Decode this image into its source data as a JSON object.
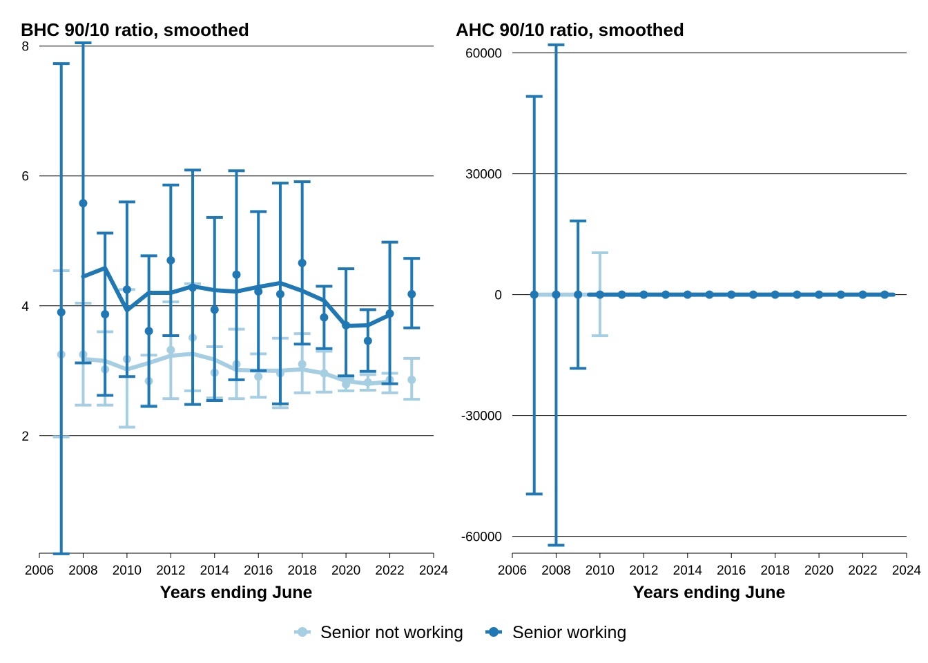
{
  "legend": {
    "items": [
      {
        "label": "Senior not working",
        "color": "#a6cee3"
      },
      {
        "label": "Senior working",
        "color": "#1f78b4"
      }
    ]
  },
  "chart_data": [
    {
      "type": "line",
      "title": "BHC 90/10 ratio, smoothed",
      "xlabel": "Years ending June",
      "ylabel": "",
      "xlim": [
        2006,
        2024
      ],
      "ylim": [
        0.2,
        8.05
      ],
      "x_ticks": [
        2006,
        2008,
        2010,
        2012,
        2014,
        2016,
        2018,
        2020,
        2022,
        2024
      ],
      "y_ticks": [
        2,
        4,
        6,
        8
      ],
      "grid": "horizontal",
      "series": [
        {
          "name": "Senior not working",
          "color": "#a6cee3",
          "x": [
            2007,
            2008,
            2009,
            2010,
            2011,
            2012,
            2013,
            2014,
            2015,
            2016,
            2017,
            2018,
            2019,
            2020,
            2021,
            2022,
            2023
          ],
          "points": [
            3.25,
            3.25,
            3.02,
            3.18,
            2.84,
            3.32,
            3.51,
            2.97,
            3.1,
            2.91,
            2.96,
            3.1,
            2.96,
            2.79,
            2.82,
            2.86,
            2.86
          ],
          "lower": [
            1.98,
            2.47,
            2.47,
            2.13,
            2.46,
            2.57,
            2.69,
            2.58,
            2.57,
            2.59,
            2.43,
            2.66,
            2.67,
            2.69,
            2.7,
            2.66,
            2.56
          ],
          "upper": [
            4.54,
            4.04,
            3.6,
            4.25,
            3.24,
            4.06,
            4.34,
            3.37,
            3.64,
            3.26,
            3.5,
            3.57,
            3.3,
            2.88,
            2.94,
            2.96,
            3.19
          ],
          "smooth_x": [
            2008,
            2009,
            2010,
            2011,
            2012,
            2013,
            2014,
            2015,
            2016,
            2017,
            2018,
            2019,
            2020,
            2021,
            2022
          ],
          "smooth": [
            3.18,
            3.15,
            3.02,
            3.12,
            3.23,
            3.26,
            3.17,
            3.01,
            3.0,
            3.0,
            3.02,
            2.96,
            2.84,
            2.8,
            2.83
          ]
        },
        {
          "name": "Senior working",
          "color": "#1f78b4",
          "x": [
            2007,
            2008,
            2009,
            2010,
            2011,
            2012,
            2013,
            2014,
            2015,
            2016,
            2017,
            2018,
            2019,
            2020,
            2021,
            2022,
            2023
          ],
          "points": [
            3.9,
            5.58,
            3.87,
            4.25,
            3.61,
            4.7,
            4.28,
            3.94,
            4.48,
            4.22,
            4.18,
            4.66,
            3.82,
            3.7,
            3.46,
            3.88,
            4.18
          ],
          "lower": [
            0.18,
            3.12,
            2.62,
            2.91,
            2.45,
            3.54,
            2.48,
            2.54,
            2.86,
            3.0,
            2.49,
            3.41,
            3.34,
            2.92,
            2.99,
            2.8,
            3.66
          ],
          "upper": [
            7.73,
            8.05,
            5.12,
            5.6,
            4.77,
            5.86,
            6.09,
            5.36,
            6.08,
            5.45,
            5.89,
            5.91,
            4.3,
            4.57,
            3.94,
            4.98,
            4.73
          ],
          "smooth_x": [
            2008,
            2009,
            2010,
            2011,
            2012,
            2013,
            2014,
            2015,
            2016,
            2017,
            2018,
            2019,
            2020,
            2021,
            2022
          ],
          "smooth": [
            4.45,
            4.58,
            3.93,
            4.2,
            4.2,
            4.3,
            4.24,
            4.22,
            4.29,
            4.35,
            4.23,
            4.08,
            3.69,
            3.7,
            3.86
          ]
        }
      ]
    },
    {
      "type": "line",
      "title": "AHC 90/10 ratio, smoothed",
      "xlabel": "Years ending June",
      "ylabel": "",
      "xlim": [
        2006,
        2024
      ],
      "ylim": [
        -64000,
        62500
      ],
      "x_ticks": [
        2006,
        2008,
        2010,
        2012,
        2014,
        2016,
        2018,
        2020,
        2022,
        2024
      ],
      "y_ticks": [
        -60000,
        -30000,
        0,
        30000,
        60000
      ],
      "grid": "horizontal",
      "series": [
        {
          "name": "Senior not working",
          "color": "#a6cee3",
          "x": [
            2007,
            2008,
            2009,
            2010,
            2011,
            2012,
            2013,
            2014,
            2015,
            2016,
            2017,
            2018,
            2019,
            2020,
            2021,
            2022,
            2023
          ],
          "points": [
            5,
            4,
            4,
            4,
            4,
            4,
            4,
            4,
            4,
            4,
            4,
            4,
            4,
            3,
            3,
            3,
            3
          ],
          "lower": [
            0,
            0,
            0,
            -10200,
            0,
            0,
            0,
            0,
            0,
            0,
            0,
            0,
            0,
            0,
            0,
            0,
            0
          ],
          "upper": [
            0,
            0,
            0,
            10400,
            0,
            0,
            0,
            0,
            0,
            0,
            0,
            0,
            0,
            0,
            0,
            0,
            0
          ],
          "smooth_x": [
            2007,
            2023
          ],
          "smooth": [
            4,
            3
          ]
        },
        {
          "name": "Senior working",
          "color": "#1f78b4",
          "x": [
            2007,
            2008,
            2009,
            2010,
            2011,
            2012,
            2013,
            2014,
            2015,
            2016,
            2017,
            2018,
            2019,
            2020,
            2021,
            2022,
            2023
          ],
          "points": [
            5,
            6,
            5,
            5,
            5,
            5,
            5,
            5,
            5,
            5,
            5,
            5,
            5,
            4,
            4,
            4,
            5
          ],
          "lower": [
            -49500,
            -62200,
            -18300,
            0,
            0,
            0,
            0,
            0,
            0,
            0,
            0,
            0,
            0,
            0,
            0,
            0,
            0
          ],
          "upper": [
            49200,
            62000,
            18300,
            0,
            0,
            0,
            0,
            0,
            0,
            0,
            0,
            0,
            0,
            0,
            0,
            0,
            0
          ],
          "smooth_x": [
            2009.5,
            2023.4
          ],
          "smooth": [
            5,
            5
          ]
        }
      ]
    }
  ]
}
